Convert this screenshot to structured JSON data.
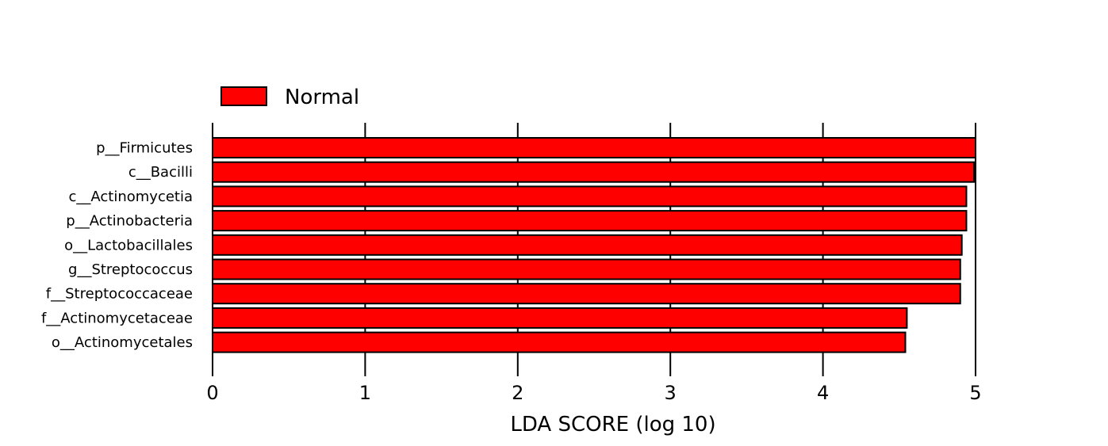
{
  "chart_data": {
    "type": "bar",
    "orientation": "horizontal",
    "categories": [
      "p__Firmicutes",
      "c__Bacilli",
      "c__Actinomycetia",
      "p__Actinobacteria",
      "o__Lactobacillales",
      "g__Streptococcus",
      "f__Streptococcaceae",
      "f__Actinomycetaceae",
      "o__Actinomycetales"
    ],
    "series": [
      {
        "name": "Normal",
        "color": "#ff0000",
        "values": [
          5.0,
          4.99,
          4.94,
          4.94,
          4.91,
          4.9,
          4.9,
          4.55,
          4.54
        ]
      }
    ],
    "title": "",
    "xlabel": "LDA SCORE (log 10)",
    "ylabel": "",
    "xlim": [
      0,
      5
    ],
    "xticks": [
      "0",
      "1",
      "2",
      "3",
      "4",
      "5"
    ],
    "grid": "vertical",
    "legend": {
      "placement": "top-left",
      "entries": [
        "Normal"
      ]
    }
  }
}
